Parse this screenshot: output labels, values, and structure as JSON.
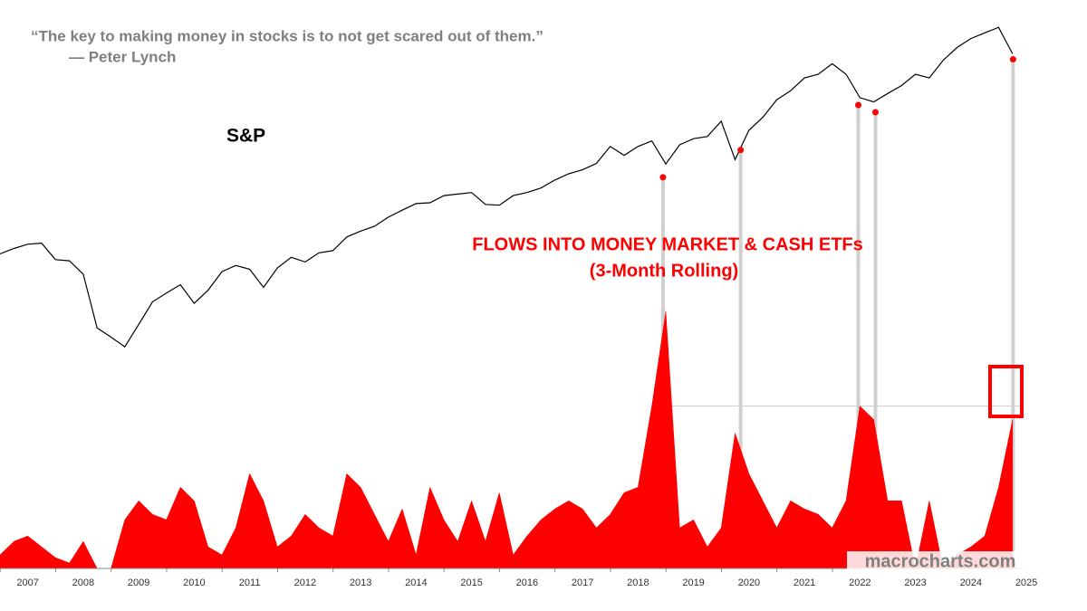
{
  "chart_data": [
    {
      "type": "line",
      "title": "S&P",
      "quote": "“The key to making money in stocks is to not get scared out of them.”",
      "attribution": "— Peter Lynch",
      "log_scale": true,
      "ylim": [
        200,
        7000
      ],
      "xlim": [
        2007,
        2025.45
      ],
      "x": [
        2007,
        2007.25,
        2007.5,
        2007.75,
        2008,
        2008.25,
        2008.5,
        2008.75,
        2009,
        2009.25,
        2009.5,
        2009.75,
        2010,
        2010.25,
        2010.5,
        2010.75,
        2011,
        2011.25,
        2011.5,
        2011.75,
        2012,
        2012.25,
        2012.5,
        2012.75,
        2013,
        2013.25,
        2013.5,
        2013.75,
        2014,
        2014.25,
        2014.5,
        2014.75,
        2015,
        2015.25,
        2015.5,
        2015.75,
        2016,
        2016.25,
        2016.5,
        2016.75,
        2017,
        2017.25,
        2017.5,
        2017.75,
        2018,
        2018.25,
        2018.5,
        2018.75,
        2019,
        2019.25,
        2019.5,
        2019.75,
        2020,
        2020.25,
        2020.5,
        2020.75,
        2021,
        2021.25,
        2021.5,
        2021.75,
        2022,
        2022.25,
        2022.5,
        2022.75,
        2023,
        2023.25,
        2023.5,
        2023.75,
        2024,
        2024.25,
        2024.5,
        2024.75,
        2025,
        2025.25
      ],
      "series": [
        {
          "name": "S&P",
          "color": "#000000",
          "values": [
            1430,
            1480,
            1520,
            1530,
            1380,
            1370,
            1260,
            900,
            850,
            800,
            920,
            1060,
            1120,
            1180,
            1050,
            1140,
            1280,
            1330,
            1300,
            1160,
            1310,
            1400,
            1360,
            1440,
            1460,
            1590,
            1650,
            1700,
            1800,
            1880,
            1960,
            1970,
            2060,
            2080,
            2100,
            1950,
            1940,
            2060,
            2100,
            2160,
            2270,
            2360,
            2420,
            2520,
            2800,
            2650,
            2800,
            2900,
            2510,
            2830,
            2940,
            2980,
            3280,
            2580,
            3100,
            3360,
            3750,
            3970,
            4300,
            4400,
            4700,
            4400,
            3800,
            3700,
            3900,
            4100,
            4400,
            4300,
            4800,
            5200,
            5500,
            5700,
            5900,
            5000
          ]
        }
      ],
      "highlights": {
        "color": "#ff0000",
        "x": [
          2018.95,
          2020.35,
          2022.47,
          2022.78,
          2025.26
        ],
        "values": [
          2310,
          2740,
          3630,
          3470,
          4830
        ]
      }
    },
    {
      "type": "area",
      "title": "FLOWS INTO MONEY MARKET & CASH ETFs",
      "subtitle": "(3-Month Rolling)",
      "source": "macrocharts.com",
      "ylim": [
        0,
        210
      ],
      "xlim": [
        2007,
        2025.45
      ],
      "reference_value": 60,
      "xticks": [
        {
          "value": 2007.5,
          "label": "2007"
        },
        {
          "value": 2008.5,
          "label": "2008"
        },
        {
          "value": 2009.5,
          "label": "2009"
        },
        {
          "value": 2010.5,
          "label": "2010"
        },
        {
          "value": 2011.5,
          "label": "2011"
        },
        {
          "value": 2012.5,
          "label": "2012"
        },
        {
          "value": 2013.5,
          "label": "2013"
        },
        {
          "value": 2014.5,
          "label": "2014"
        },
        {
          "value": 2015.5,
          "label": "2015"
        },
        {
          "value": 2016.5,
          "label": "2016"
        },
        {
          "value": 2017.5,
          "label": "2017"
        },
        {
          "value": 2018.5,
          "label": "2018"
        },
        {
          "value": 2019.5,
          "label": "2019"
        },
        {
          "value": 2020.5,
          "label": "2020"
        },
        {
          "value": 2021.5,
          "label": "2021"
        },
        {
          "value": 2022.5,
          "label": "2022"
        },
        {
          "value": 2023.5,
          "label": "2023"
        },
        {
          "value": 2024.5,
          "label": "2024"
        },
        {
          "value": 2025.5,
          "label": "2025"
        }
      ],
      "x": [
        2007,
        2007.25,
        2007.5,
        2007.75,
        2008,
        2008.25,
        2008.5,
        2008.75,
        2009,
        2009.25,
        2009.5,
        2009.75,
        2010,
        2010.25,
        2010.5,
        2010.75,
        2011,
        2011.25,
        2011.5,
        2011.75,
        2012,
        2012.25,
        2012.5,
        2012.75,
        2013,
        2013.25,
        2013.5,
        2013.75,
        2014,
        2014.25,
        2014.5,
        2014.75,
        2015,
        2015.25,
        2015.5,
        2015.75,
        2016,
        2016.25,
        2016.5,
        2016.75,
        2017,
        2017.25,
        2017.5,
        2017.75,
        2018,
        2018.25,
        2018.5,
        2018.75,
        2019,
        2019.25,
        2019.5,
        2019.75,
        2020,
        2020.25,
        2020.5,
        2020.75,
        2021,
        2021.25,
        2021.5,
        2021.75,
        2022,
        2022.25,
        2022.5,
        2022.75,
        2023,
        2023.25,
        2023.5,
        2023.75,
        2024,
        2024.25,
        2024.5,
        2024.75,
        2025,
        2025.25
      ],
      "series": [
        {
          "name": "Flows",
          "color": "#ff0000",
          "values": [
            5,
            10,
            12,
            8,
            4,
            2,
            10,
            0,
            0,
            18,
            25,
            20,
            18,
            30,
            25,
            8,
            5,
            15,
            35,
            25,
            8,
            12,
            20,
            15,
            12,
            35,
            30,
            20,
            10,
            22,
            5,
            30,
            18,
            10,
            25,
            10,
            28,
            5,
            12,
            18,
            22,
            25,
            22,
            15,
            20,
            28,
            30,
            60,
            95,
            15,
            18,
            8,
            15,
            50,
            35,
            25,
            15,
            25,
            22,
            20,
            15,
            25,
            60,
            55,
            25,
            25,
            0,
            25,
            0,
            5,
            8,
            12,
            30,
            55
          ]
        }
      ]
    }
  ]
}
